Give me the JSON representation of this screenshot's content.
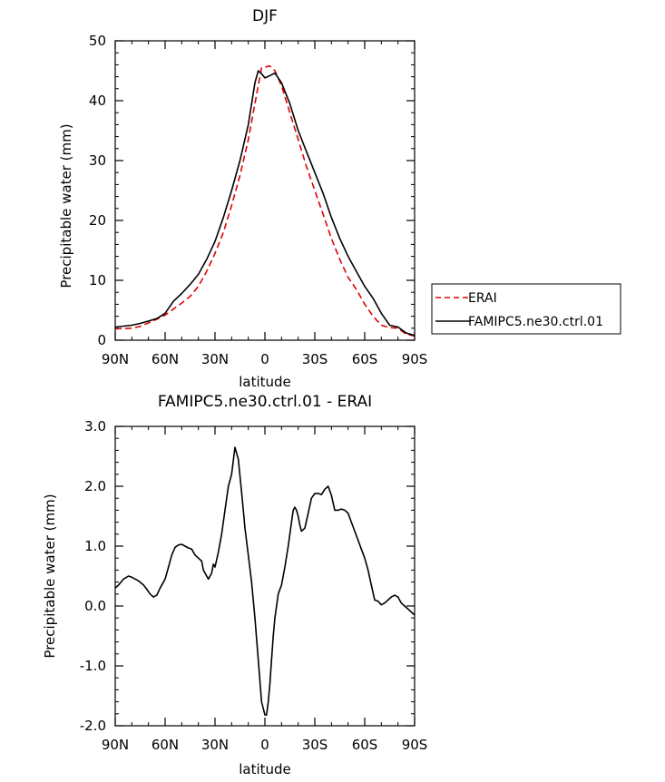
{
  "chart_data": [
    {
      "type": "line",
      "title": "DJF",
      "xlabel": "latitude",
      "ylabel": "Precipitable water (mm)",
      "xlim": [
        -90,
        90
      ],
      "ylim": [
        0,
        50
      ],
      "x_ticks": [
        -90,
        -60,
        -30,
        0,
        30,
        60,
        90
      ],
      "x_tick_labels": [
        "90N",
        "60N",
        "30N",
        "0",
        "30S",
        "60S",
        "90S"
      ],
      "y_ticks": [
        0,
        10,
        20,
        30,
        40,
        50
      ],
      "y_tick_labels": [
        "0",
        "10",
        "20",
        "30",
        "40",
        "50"
      ],
      "legend": "right",
      "series": [
        {
          "name": "ERAI",
          "color": "#e00000",
          "dash": "dashed",
          "x": [
            -90,
            -80,
            -75,
            -70,
            -65,
            -60,
            -55,
            -50,
            -45,
            -40,
            -35,
            -30,
            -25,
            -20,
            -15,
            -10,
            -5,
            -2,
            0,
            3,
            6,
            10,
            15,
            20,
            25,
            30,
            35,
            40,
            45,
            50,
            55,
            60,
            65,
            70,
            75,
            80,
            85,
            90
          ],
          "y": [
            1.9,
            2.0,
            2.3,
            2.9,
            3.5,
            4.2,
            5.2,
            6.2,
            7.3,
            9.0,
            11.5,
            14.5,
            18.0,
            22.5,
            27.5,
            33.5,
            41.0,
            45.5,
            45.6,
            45.8,
            45.0,
            42.5,
            38.0,
            33.5,
            29.0,
            25.0,
            21.0,
            17.0,
            13.5,
            10.5,
            8.5,
            6.0,
            4.0,
            2.5,
            2.1,
            2.0,
            1.0,
            0.7
          ]
        },
        {
          "name": "FAMIPC5.ne30.ctrl.01",
          "color": "#000000",
          "dash": "solid",
          "x": [
            -90,
            -80,
            -75,
            -70,
            -65,
            -60,
            -55,
            -50,
            -45,
            -40,
            -35,
            -30,
            -25,
            -20,
            -15,
            -10,
            -6,
            -4,
            -2,
            0,
            3,
            6,
            10,
            15,
            20,
            25,
            30,
            35,
            40,
            45,
            50,
            55,
            60,
            65,
            70,
            75,
            80,
            85,
            90
          ],
          "y": [
            2.2,
            2.5,
            2.8,
            3.2,
            3.6,
            4.5,
            6.5,
            7.8,
            9.3,
            11.0,
            13.5,
            16.5,
            20.5,
            25.0,
            30.0,
            36.0,
            43.0,
            45.0,
            44.5,
            43.8,
            44.2,
            44.6,
            43.0,
            39.5,
            35.0,
            31.5,
            28.0,
            24.5,
            20.5,
            17.0,
            14.0,
            11.5,
            9.0,
            7.0,
            4.5,
            2.5,
            2.2,
            1.2,
            0.8
          ]
        }
      ]
    },
    {
      "type": "line",
      "title": "FAMIPC5.ne30.ctrl.01 - ERAI",
      "xlabel": "latitude",
      "ylabel": "Precipitable water (mm)",
      "xlim": [
        -90,
        90
      ],
      "ylim": [
        -2.0,
        3.0
      ],
      "x_ticks": [
        -90,
        -60,
        -30,
        0,
        30,
        60,
        90
      ],
      "x_tick_labels": [
        "90N",
        "60N",
        "30N",
        "0",
        "30S",
        "60S",
        "90S"
      ],
      "y_ticks": [
        -2.0,
        -1.0,
        0.0,
        1.0,
        2.0,
        3.0
      ],
      "y_tick_labels": [
        "-2.0",
        "-1.0",
        "0.0",
        "1.0",
        "2.0",
        "3.0"
      ],
      "series": [
        {
          "name": "",
          "color": "#000000",
          "dash": "solid",
          "x": [
            -90,
            -88,
            -85,
            -82,
            -80,
            -78,
            -76,
            -73,
            -71,
            -69,
            -67,
            -65,
            -63,
            -60,
            -58,
            -56,
            -54,
            -52,
            -50,
            -48,
            -46,
            -44,
            -42,
            -40,
            -38,
            -37,
            -35,
            -34,
            -32,
            -31,
            -30,
            -28,
            -26,
            -24,
            -22,
            -20,
            -18,
            -16,
            -14,
            -13,
            -12,
            -10,
            -8,
            -6,
            -4,
            -2,
            0,
            1,
            2,
            3,
            4,
            5,
            6,
            8,
            10,
            12,
            14,
            16,
            17,
            18,
            19,
            20,
            21,
            22,
            24,
            26,
            28,
            30,
            32,
            34,
            36,
            38,
            40,
            42,
            44,
            46,
            48,
            50,
            52,
            54,
            56,
            58,
            60,
            62,
            64,
            66,
            68,
            70,
            72,
            74,
            76,
            78,
            80,
            82,
            84,
            86,
            88,
            90
          ],
          "y": [
            0.3,
            0.35,
            0.45,
            0.5,
            0.48,
            0.45,
            0.42,
            0.35,
            0.28,
            0.2,
            0.15,
            0.18,
            0.3,
            0.45,
            0.65,
            0.85,
            0.98,
            1.02,
            1.03,
            1.0,
            0.97,
            0.95,
            0.85,
            0.8,
            0.75,
            0.6,
            0.5,
            0.45,
            0.55,
            0.7,
            0.65,
            0.9,
            1.2,
            1.6,
            2.0,
            2.2,
            2.65,
            2.45,
            1.9,
            1.6,
            1.3,
            0.85,
            0.4,
            -0.2,
            -0.9,
            -1.6,
            -1.82,
            -1.82,
            -1.6,
            -1.3,
            -0.9,
            -0.5,
            -0.2,
            0.2,
            0.35,
            0.65,
            1.0,
            1.4,
            1.6,
            1.65,
            1.6,
            1.5,
            1.35,
            1.25,
            1.3,
            1.55,
            1.8,
            1.88,
            1.88,
            1.86,
            1.95,
            2.0,
            1.85,
            1.6,
            1.6,
            1.62,
            1.6,
            1.55,
            1.4,
            1.25,
            1.1,
            0.95,
            0.8,
            0.6,
            0.35,
            0.1,
            0.08,
            0.02,
            0.05,
            0.1,
            0.15,
            0.18,
            0.15,
            0.05,
            0.0,
            -0.05,
            -0.1,
            -0.15
          ]
        }
      ]
    }
  ]
}
